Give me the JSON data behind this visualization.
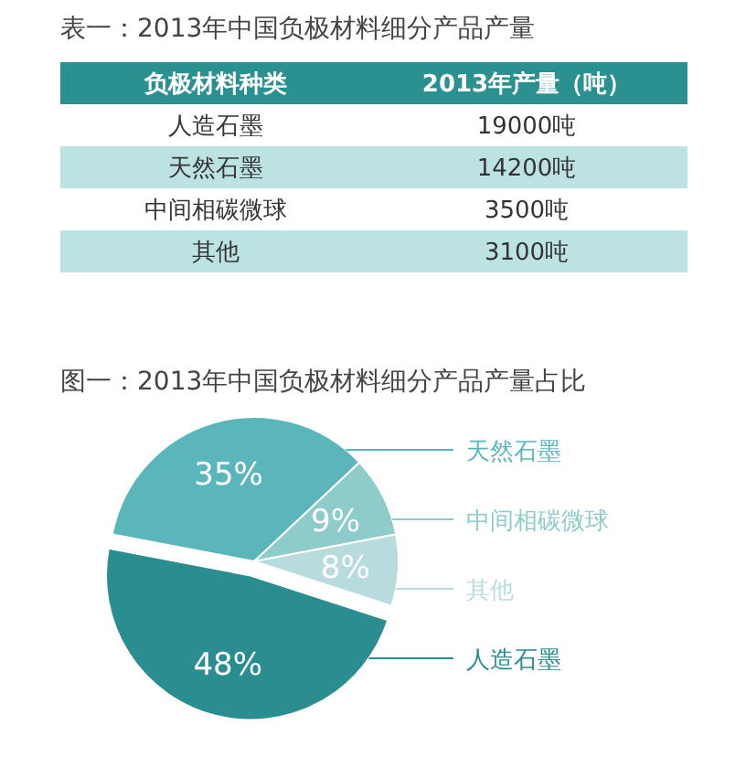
{
  "chart_data": [
    {
      "type": "other",
      "title": "表一：2013年中国负极材料细分产品产量",
      "xlabel": "负极材料种类",
      "ylabel": "2013年产量（吨）",
      "categories": [
        "人造石墨",
        "天然石墨",
        "中间相碳微球",
        "其他"
      ],
      "values": [
        19000,
        14200,
        3500,
        3100
      ],
      "value_labels": [
        "19000吨",
        "14200吨",
        "3500吨",
        "3100吨"
      ]
    },
    {
      "type": "pie",
      "title": "图一：2013年中国负极材料细分产品产量占比",
      "categories": [
        "人造石墨",
        "天然石墨",
        "中间相碳微球",
        "其他"
      ],
      "values": [
        48,
        35,
        9,
        8
      ],
      "colors": [
        "#2a8d8f",
        "#5bb6bc",
        "#8ecbcb",
        "#b8dcdd"
      ],
      "value_labels": [
        "48%",
        "35%",
        "9%",
        "8%"
      ]
    }
  ]
}
